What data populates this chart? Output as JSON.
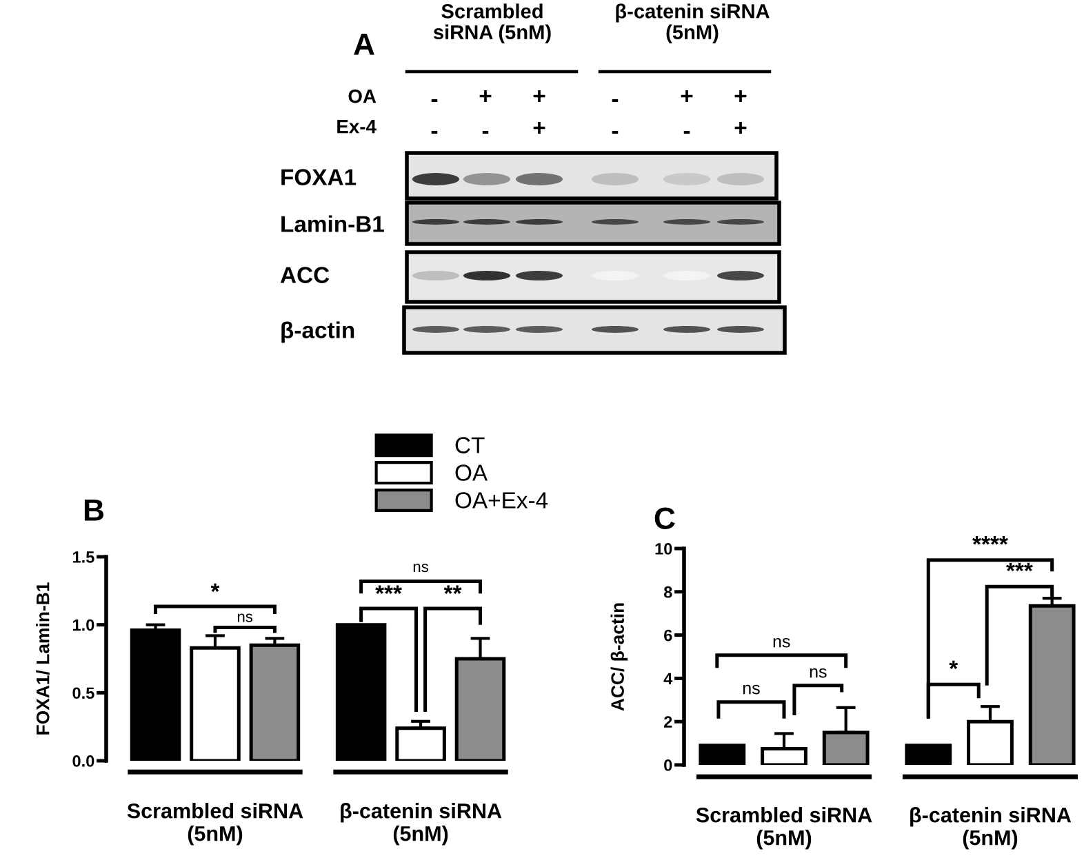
{
  "chart_data": [
    {
      "type": "other",
      "title": "A",
      "annotations": [
        "Scrambled\nsiRNA (5nM)",
        "β-catenin siRNA\n(5nM)",
        "OA",
        "-",
        "+",
        "+",
        "-",
        "+",
        "+",
        "Ex-4",
        "-",
        "-",
        "+",
        "-",
        "-",
        "+",
        "FOXA1",
        "Lamin-B1",
        "ACC",
        "β-actin"
      ]
    },
    {
      "type": "bar",
      "title": "B",
      "ylabel": "FOXA1/ Lamin-B1",
      "categories": [
        "Scrambled siRNA\n(5nM)",
        "β-catenin siRNA\n(5nM)"
      ],
      "series": [
        {
          "name": "CT",
          "color": "#000000",
          "values": [
            0.96,
            1.0
          ],
          "errors": [
            [
              0.96,
              1.0
            ],
            null
          ]
        },
        {
          "name": "OA",
          "color": "#ffffff",
          "values": [
            0.83,
            0.24
          ],
          "errors": [
            [
              0.83,
              0.92
            ],
            [
              0.24,
              0.29
            ]
          ]
        },
        {
          "name": "OA+Ex-4",
          "color": "#8c8c8c",
          "values": [
            0.85,
            0.75
          ],
          "errors": [
            [
              0.85,
              0.9
            ],
            [
              0.75,
              0.9
            ]
          ]
        }
      ],
      "ylim": [
        0,
        1.5
      ],
      "yticks": [
        {
          "value": 0,
          "label": "0.0"
        },
        {
          "value": 0.5,
          "label": "0.5"
        },
        {
          "value": 1,
          "label": "1.0"
        },
        {
          "value": 1.5,
          "label": "1.5"
        }
      ],
      "legend": "top right",
      "annotations": [
        "*",
        "ns",
        "ns",
        "***",
        "**"
      ]
    },
    {
      "type": "bar",
      "title": "C",
      "ylabel": "ACC/ β-actin",
      "categories": [
        "Scrambled siRNA\n(5nM)",
        "β-catenin siRNA\n(5nM)"
      ],
      "series": [
        {
          "color": "#000000",
          "values": [
            0.9,
            0.9
          ]
        },
        {
          "color": "#ffffff",
          "values": [
            0.75,
            2.0
          ],
          "errors": [
            [
              0.75,
              1.45
            ],
            [
              2.0,
              2.7
            ]
          ]
        },
        {
          "color": "#8c8c8c",
          "values": [
            1.5,
            7.35
          ],
          "errors": [
            [
              1.5,
              2.65
            ],
            [
              7.35,
              7.7
            ]
          ]
        }
      ],
      "ylim": [
        0,
        10
      ],
      "yticks": [
        0,
        2,
        4,
        6,
        8,
        10
      ],
      "annotations": [
        "ns",
        "ns",
        "ns",
        "****",
        "***",
        "*"
      ]
    }
  ]
}
